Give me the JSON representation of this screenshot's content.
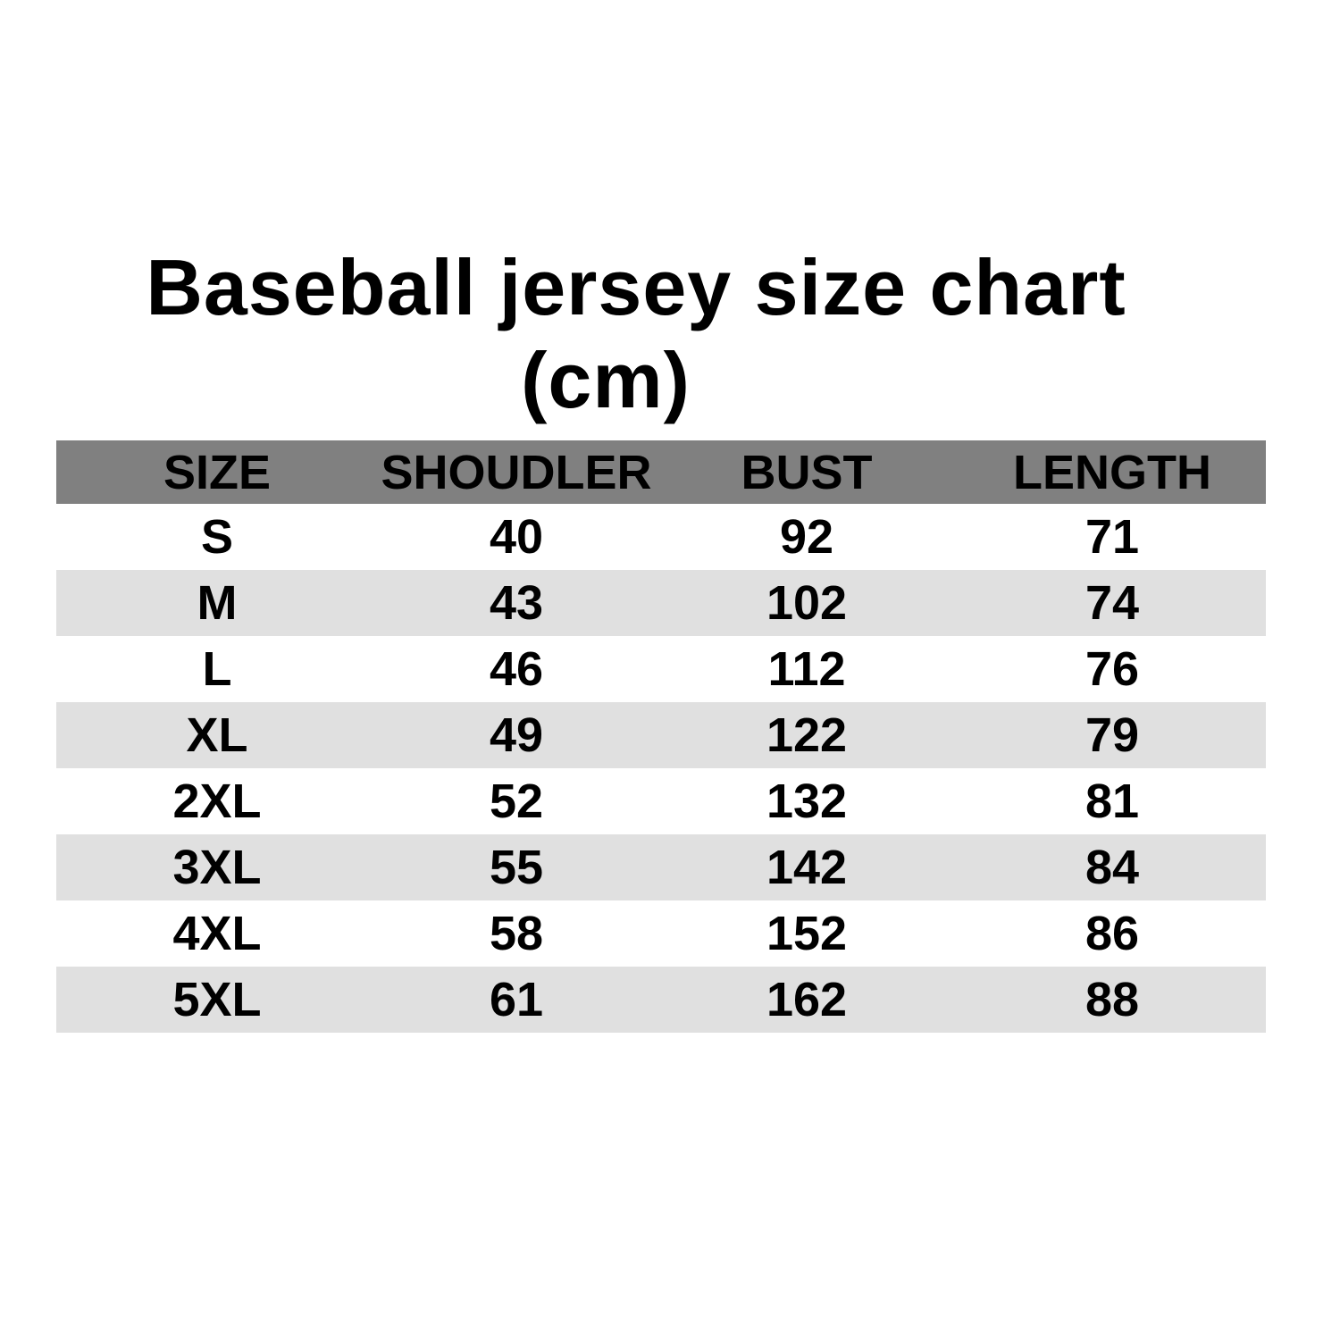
{
  "title_line1": "Baseball jersey size chart",
  "title_line2": "(cm)",
  "colors": {
    "header_bg": "#808080",
    "stripe_bg": "#e0e0e0",
    "text": "#000000"
  },
  "headers": [
    "SIZE",
    "SHOUDLER",
    "BUST",
    "LENGTH"
  ],
  "rows": [
    [
      "S",
      "40",
      "92",
      "71"
    ],
    [
      "M",
      "43",
      "102",
      "74"
    ],
    [
      "L",
      "46",
      "112",
      "76"
    ],
    [
      "XL",
      "49",
      "122",
      "79"
    ],
    [
      "2XL",
      "52",
      "132",
      "81"
    ],
    [
      "3XL",
      "55",
      "142",
      "84"
    ],
    [
      "4XL",
      "58",
      "152",
      "86"
    ],
    [
      "5XL",
      "61",
      "162",
      "88"
    ]
  ]
}
